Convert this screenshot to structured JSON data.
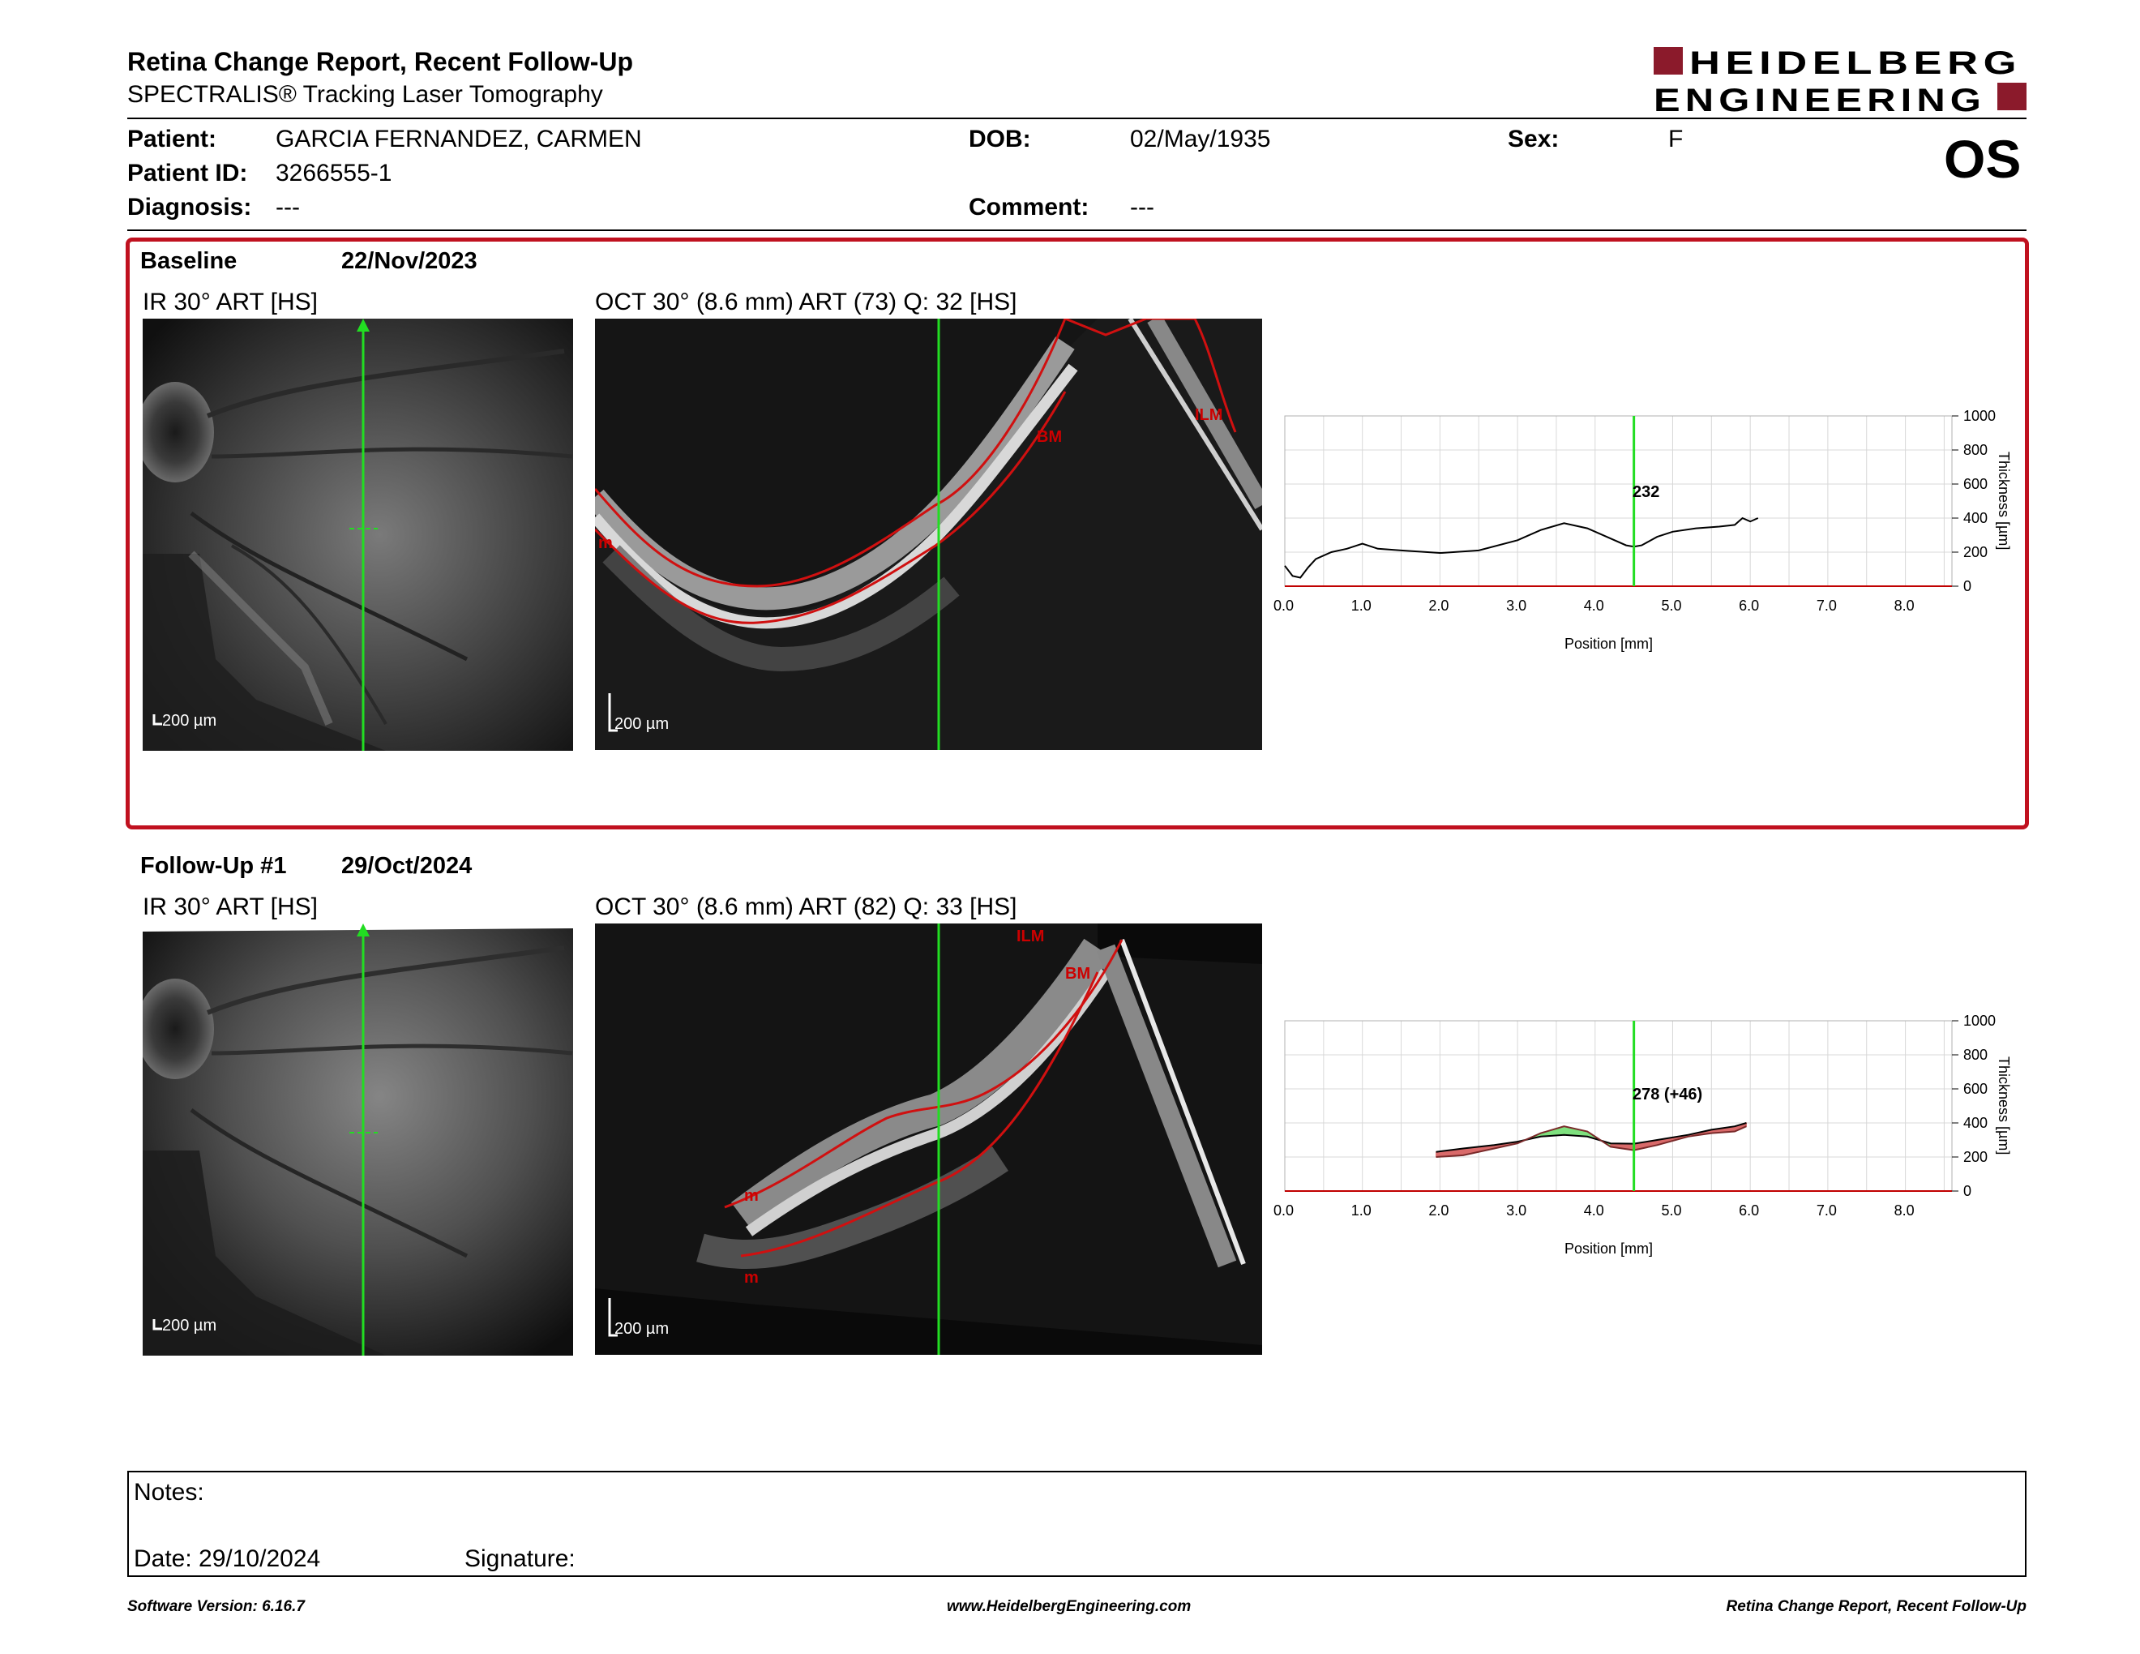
{
  "report": {
    "title": "Retina Change Report, Recent Follow-Up",
    "subtitle": "SPECTRALIS® Tracking Laser Tomography"
  },
  "logo": {
    "line1": "HEIDELBERG",
    "line2": "ENGINEERING",
    "color": "#8b1a2b"
  },
  "patient": {
    "patient_label": "Patient:",
    "patient_value": "GARCIA FERNANDEZ, CARMEN",
    "id_label": "Patient ID:",
    "id_value": "3266555-1",
    "diagnosis_label": "Diagnosis:",
    "diagnosis_value": "---",
    "dob_label": "DOB:",
    "dob_value": "02/May/1935",
    "comment_label": "Comment:",
    "comment_value": "---",
    "sex_label": "Sex:",
    "sex_value": "F",
    "eye": "OS"
  },
  "baseline": {
    "label": "Baseline",
    "date": "22/Nov/2023",
    "ir_label": "IR 30° ART [HS]",
    "oct_label": "OCT 30° (8.6 mm) ART (73) Q: 32 [HS]",
    "scale": "200 µm",
    "layer_labels": {
      "ilm": "ILM",
      "bm": "BM",
      "edge": "m"
    },
    "cursor_value": "232"
  },
  "followup": {
    "label": "Follow-Up #1",
    "date": "29/Oct/2024",
    "ir_label": "IR 30° ART [HS]",
    "oct_label": "OCT 30° (8.6 mm) ART (82) Q: 33 [HS]",
    "scale": "200 µm",
    "layer_labels": {
      "ilm": "ILM",
      "bm": "BM",
      "edge1": "m",
      "edge2": "m"
    },
    "cursor_value": "278 (+46)"
  },
  "chart_axes": {
    "xlabel": "Position [mm]",
    "ylabel": "Thickness [µm]",
    "x_ticks": [
      "0.0",
      "1.0",
      "2.0",
      "3.0",
      "4.0",
      "5.0",
      "6.0",
      "7.0",
      "8.0"
    ],
    "y_ticks": [
      "1000",
      "800",
      "600",
      "400",
      "200",
      "0"
    ]
  },
  "chart_data": [
    {
      "type": "line",
      "xlim": [
        0,
        8.6
      ],
      "ylim": [
        0,
        1000
      ],
      "cursor_x": 4.5,
      "series": [
        {
          "x": [
            0.0,
            0.1,
            0.2,
            0.3,
            0.4,
            0.6,
            0.8,
            1.0,
            1.2,
            1.5,
            2.0,
            2.5,
            3.0,
            3.3,
            3.6,
            3.9,
            4.2,
            4.4,
            4.5,
            4.6,
            4.8,
            5.0,
            5.3,
            5.6,
            5.8,
            5.9,
            6.0,
            6.1
          ],
          "y": [
            120,
            60,
            50,
            110,
            160,
            200,
            220,
            250,
            220,
            210,
            195,
            210,
            270,
            330,
            370,
            340,
            280,
            240,
            232,
            240,
            290,
            320,
            340,
            350,
            360,
            400,
            380,
            400
          ]
        }
      ]
    },
    {
      "type": "line",
      "xlim": [
        0,
        8.6
      ],
      "ylim": [
        0,
        1000
      ],
      "cursor_x": 4.5,
      "series": [
        {
          "x": [
            1.95,
            2.3,
            2.7,
            3.0,
            3.3,
            3.6,
            3.9,
            4.2,
            4.5,
            4.8,
            5.2,
            5.5,
            5.8,
            5.95
          ],
          "y": [
            230,
            250,
            270,
            290,
            320,
            330,
            320,
            280,
            278,
            300,
            330,
            360,
            380,
            400
          ]
        },
        {
          "x": [
            1.95,
            2.3,
            2.7,
            3.0,
            3.3,
            3.6,
            3.9,
            4.2,
            4.5,
            4.8,
            5.2,
            5.5,
            5.8,
            5.95
          ],
          "y": [
            200,
            210,
            250,
            280,
            340,
            380,
            350,
            260,
            240,
            270,
            320,
            340,
            350,
            380
          ]
        }
      ]
    }
  ],
  "notes": {
    "label": "Notes:",
    "date": "Date: 29/10/2024",
    "signature": "Signature:"
  },
  "footer": {
    "version": "Software Version: 6.16.7",
    "website": "www.HeidelbergEngineering.com",
    "report": "Retina Change Report, Recent Follow-Up"
  }
}
